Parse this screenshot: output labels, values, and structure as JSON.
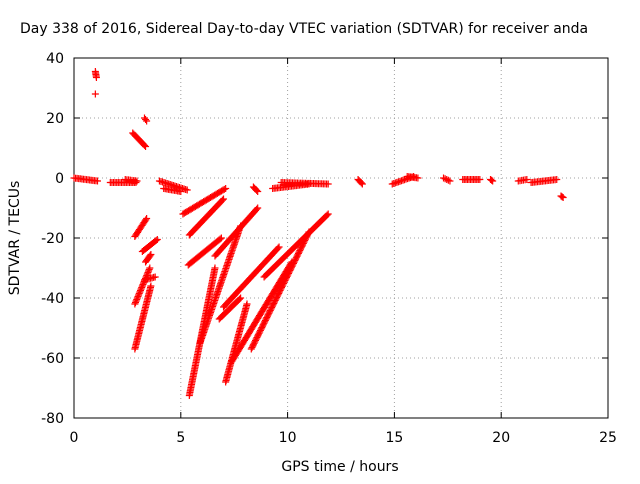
{
  "chart_data": {
    "type": "scatter",
    "title": "Day 338 of 2016, Sidereal Day-to-day VTEC variation (SDTVAR) for receiver anda",
    "xlabel": "GPS time / hours",
    "ylabel": "SDTVAR / TECUs",
    "xlim": [
      0,
      25
    ],
    "ylim": [
      -80,
      40
    ],
    "xticks": [
      0,
      5,
      10,
      15,
      20,
      25
    ],
    "xtick_labels": [
      "0",
      "5",
      "10",
      "15",
      "20",
      "25"
    ],
    "yticks": [
      -80,
      -60,
      -40,
      -20,
      0,
      20,
      40
    ],
    "ytick_labels": [
      "-80",
      "-60",
      "-40",
      "-20",
      "0",
      "20",
      "40"
    ],
    "grid": true,
    "marker": "+",
    "color": "#ff0000",
    "series": [
      {
        "name": "anda",
        "segments": [
          {
            "x": [
              0.0,
              1.1
            ],
            "y": [
              0.0,
              -1.0
            ]
          },
          {
            "x": [
              1.0,
              1.05
            ],
            "y": [
              35.5,
              33.5
            ]
          },
          {
            "x": [
              1.0
            ],
            "y": [
              28.0
            ]
          },
          {
            "x": [
              1.7,
              2.9
            ],
            "y": [
              -1.5,
              -1.5
            ]
          },
          {
            "x": [
              2.4,
              2.95
            ],
            "y": [
              -0.5,
              -1.0
            ]
          },
          {
            "x": [
              2.75,
              3.35
            ],
            "y": [
              15.0,
              10.5
            ]
          },
          {
            "x": [
              3.3,
              3.4
            ],
            "y": [
              20.0,
              19.0
            ]
          },
          {
            "x": [
              2.85,
              3.4
            ],
            "y": [
              -19.5,
              -13.5
            ]
          },
          {
            "x": [
              2.85,
              3.55
            ],
            "y": [
              -42.0,
              -30.0
            ]
          },
          {
            "x": [
              2.85,
              3.6
            ],
            "y": [
              -57.0,
              -36.0
            ]
          },
          {
            "x": [
              3.3,
              3.8
            ],
            "y": [
              -34.0,
              -33.0
            ]
          },
          {
            "x": [
              3.2,
              3.9
            ],
            "y": [
              -24.5,
              -20.5
            ]
          },
          {
            "x": [
              3.35,
              3.6
            ],
            "y": [
              -28.0,
              -25.5
            ]
          },
          {
            "x": [
              4.0,
              5.3
            ],
            "y": [
              -1.0,
              -4.0
            ]
          },
          {
            "x": [
              4.2,
              5.0
            ],
            "y": [
              -3.5,
              -4.5
            ]
          },
          {
            "x": [
              5.1,
              7.1
            ],
            "y": [
              -12.0,
              -3.5
            ]
          },
          {
            "x": [
              5.4,
              7.0
            ],
            "y": [
              -19.0,
              -7.0
            ]
          },
          {
            "x": [
              5.35,
              6.9
            ],
            "y": [
              -29.0,
              -20.0
            ]
          },
          {
            "x": [
              5.4,
              6.6
            ],
            "y": [
              -72.5,
              -30.0
            ]
          },
          {
            "x": [
              5.9,
              7.8
            ],
            "y": [
              -55.0,
              -16.0
            ]
          },
          {
            "x": [
              6.6,
              8.6
            ],
            "y": [
              -26.0,
              -10.0
            ]
          },
          {
            "x": [
              7.1,
              8.1
            ],
            "y": [
              -68.0,
              -42.0
            ]
          },
          {
            "x": [
              6.8,
              7.8
            ],
            "y": [
              -47.0,
              -40.0
            ]
          },
          {
            "x": [
              7.0,
              9.6
            ],
            "y": [
              -43.0,
              -23.0
            ]
          },
          {
            "x": [
              7.4,
              10.2
            ],
            "y": [
              -61.0,
              -28.0
            ]
          },
          {
            "x": [
              8.3,
              11.0
            ],
            "y": [
              -57.0,
              -18.0
            ]
          },
          {
            "x": [
              8.9,
              11.9
            ],
            "y": [
              -33.0,
              -12.0
            ]
          },
          {
            "x": [
              8.4,
              8.6
            ],
            "y": [
              -3.0,
              -4.5
            ]
          },
          {
            "x": [
              9.7,
              11.9
            ],
            "y": [
              -1.5,
              -2.0
            ]
          },
          {
            "x": [
              9.3,
              11.0
            ],
            "y": [
              -3.5,
              -2.0
            ]
          },
          {
            "x": [
              13.3,
              13.5
            ],
            "y": [
              -0.5,
              -2.0
            ]
          },
          {
            "x": [
              14.9,
              15.9
            ],
            "y": [
              -2.0,
              0.5
            ]
          },
          {
            "x": [
              15.6,
              16.1
            ],
            "y": [
              0.5,
              0.0
            ]
          },
          {
            "x": [
              17.3,
              17.6
            ],
            "y": [
              0.0,
              -1.0
            ]
          },
          {
            "x": [
              18.2,
              19.0
            ],
            "y": [
              -0.5,
              -0.5
            ]
          },
          {
            "x": [
              19.5,
              19.6
            ],
            "y": [
              -0.5,
              -1.0
            ]
          },
          {
            "x": [
              20.8,
              21.2
            ],
            "y": [
              -1.0,
              -0.5
            ]
          },
          {
            "x": [
              21.4,
              22.6
            ],
            "y": [
              -1.5,
              -0.5
            ]
          },
          {
            "x": [
              22.8,
              22.9
            ],
            "y": [
              -6.0,
              -6.5
            ]
          }
        ]
      }
    ]
  }
}
